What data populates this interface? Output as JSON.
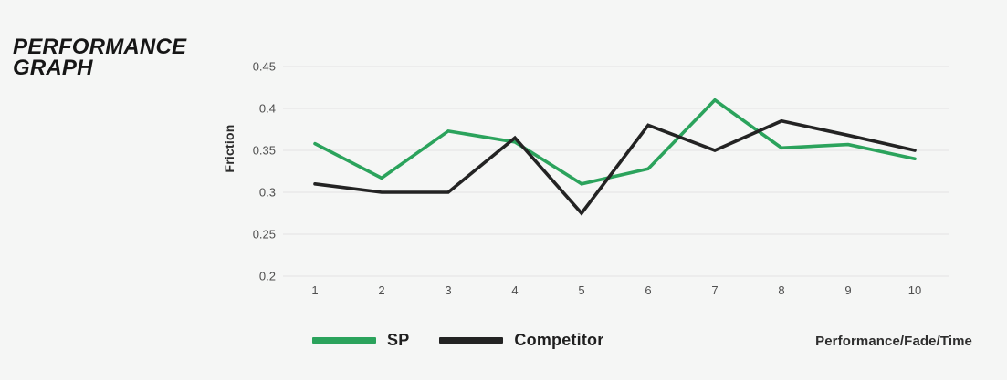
{
  "page": {
    "background_color": "#f5f6f5"
  },
  "header": {
    "title_line1": "PERFORMANCE",
    "title_line2": "GRAPH"
  },
  "chart_data": {
    "type": "line",
    "title": "PERFORMANCE GRAPH",
    "ylabel": "Friction",
    "xlabel": "",
    "x_caption": "Performance/Fade/Time",
    "x": [
      1,
      2,
      3,
      4,
      5,
      6,
      7,
      8,
      9,
      10
    ],
    "series": [
      {
        "name": "SP",
        "color": "#2ba35c",
        "values": [
          0.358,
          0.317,
          0.373,
          0.36,
          0.31,
          0.328,
          0.41,
          0.353,
          0.357,
          0.34
        ]
      },
      {
        "name": "Competitor",
        "color": "#232323",
        "values": [
          0.31,
          0.3,
          0.3,
          0.365,
          0.275,
          0.38,
          0.35,
          0.385,
          0.368,
          0.35
        ]
      }
    ],
    "ylim": [
      0.2,
      0.45
    ],
    "yticks": [
      0.2,
      0.25,
      0.3,
      0.35,
      0.4,
      0.45
    ],
    "grid": true,
    "gridline_color": "#e2e2e2",
    "tick_label_color": "#4f4f4f",
    "legend_position": "bottom"
  }
}
